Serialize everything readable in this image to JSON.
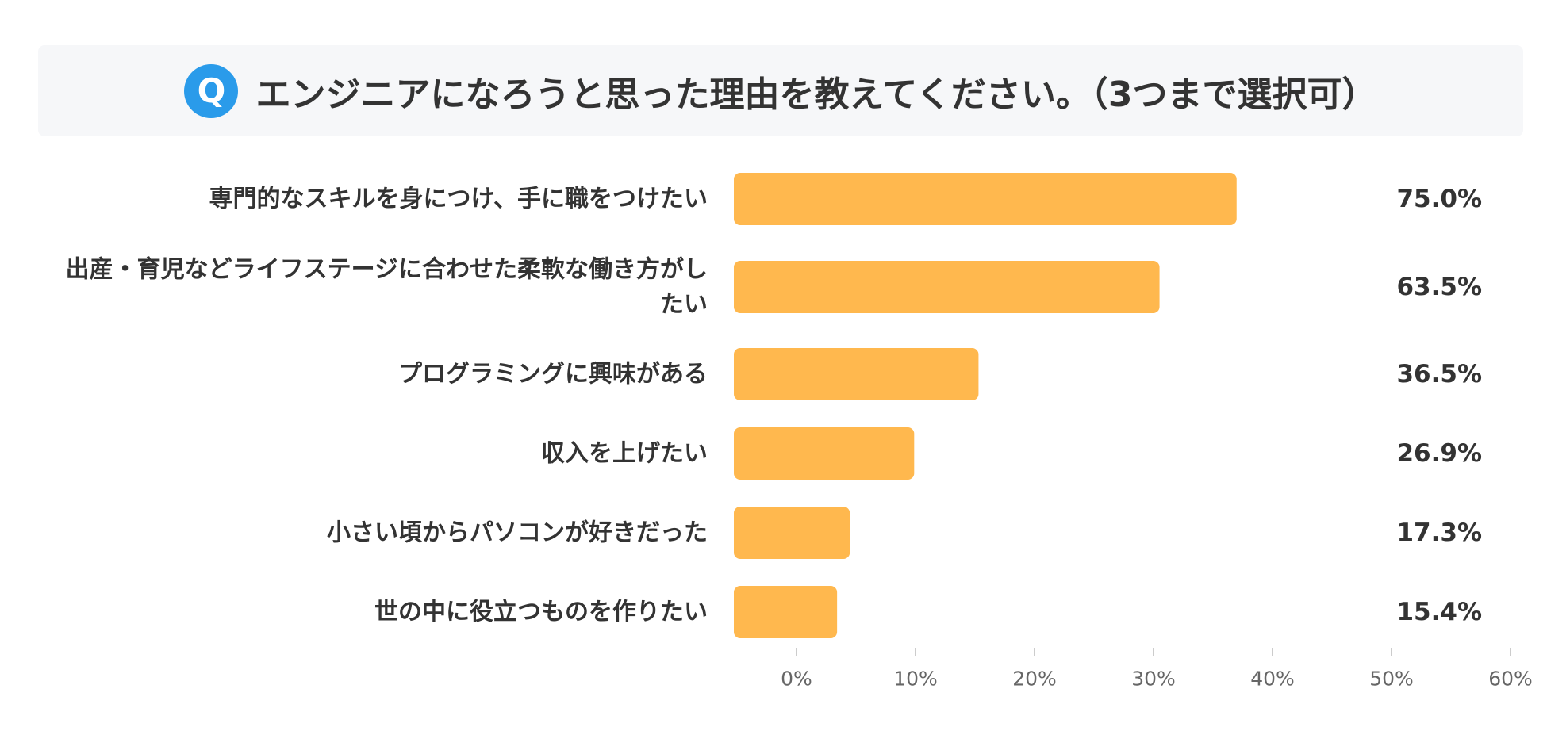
{
  "header": {
    "badge": "Q",
    "title": "エンジニアになろうと思った理由を教えてください。（3つまで選択可）"
  },
  "colors": {
    "bar": "#ffb84e",
    "badge": "#2a9bea",
    "text": "#333333",
    "axis_text": "#666666",
    "title_bg": "#f6f7f9"
  },
  "chart_data": {
    "type": "bar",
    "orientation": "horizontal",
    "categories": [
      [
        "専門的なスキルを身につけ、手に職をつけたい"
      ],
      [
        "出産・育児などライフステージに合わせた柔軟な働き方がし",
        "たい"
      ],
      [
        "プログラミングに興味がある"
      ],
      [
        "収入を上げたい"
      ],
      [
        "小さい頃からパソコンが好きだった"
      ],
      [
        "世の中に役立つものを作りたい"
      ]
    ],
    "values": [
      75.0,
      63.5,
      36.5,
      26.9,
      17.3,
      15.4
    ],
    "value_labels": [
      "75.0%",
      "63.5%",
      "36.5%",
      "26.9%",
      "17.3%",
      "15.4%"
    ],
    "xlim": [
      0,
      60
    ],
    "xticks": [
      0,
      10,
      20,
      30,
      40,
      50,
      60
    ],
    "xtick_labels": [
      "0%",
      "10%",
      "20%",
      "30%",
      "40%",
      "50%",
      "60%"
    ],
    "grid": false
  }
}
